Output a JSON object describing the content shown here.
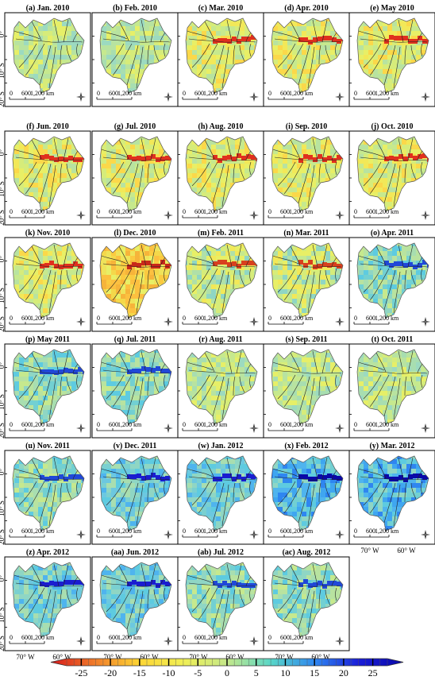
{
  "figure": {
    "panels": [
      {
        "label": "(a) Jan. 2010",
        "pattern": "neutral"
      },
      {
        "label": "(b) Feb. 2010",
        "pattern": "neutral"
      },
      {
        "label": "(c) Mar. 2010",
        "pattern": "red"
      },
      {
        "label": "(d) Apr. 2010",
        "pattern": "red"
      },
      {
        "label": "(e) May 2010",
        "pattern": "red"
      },
      {
        "label": "(f) Jun. 2010",
        "pattern": "red"
      },
      {
        "label": "(g) Jul. 2010",
        "pattern": "red"
      },
      {
        "label": "(h) Aug. 2010",
        "pattern": "red"
      },
      {
        "label": "(i) Sep. 2010",
        "pattern": "red"
      },
      {
        "label": "(j) Oct. 2010",
        "pattern": "red"
      },
      {
        "label": "(k) Nov. 2010",
        "pattern": "red"
      },
      {
        "label": "(l) Dec. 2010",
        "pattern": "strongred"
      },
      {
        "label": "(m) Feb. 2011",
        "pattern": "mixed"
      },
      {
        "label": "(n) Mar. 2011",
        "pattern": "mixed"
      },
      {
        "label": "(o) Apr. 2011",
        "pattern": "blueish"
      },
      {
        "label": "(p) May 2011",
        "pattern": "blueish"
      },
      {
        "label": "(q) Jul. 2011",
        "pattern": "blueish"
      },
      {
        "label": "(r) Aug. 2011",
        "pattern": "neutral"
      },
      {
        "label": "(s) Sep. 2011",
        "pattern": "neutral"
      },
      {
        "label": "(t) Oct. 2011",
        "pattern": "neutral"
      },
      {
        "label": "(u) Nov. 2011",
        "pattern": "blueish"
      },
      {
        "label": "(v) Dec. 2011",
        "pattern": "blue"
      },
      {
        "label": "(w) Jan. 2012",
        "pattern": "blue"
      },
      {
        "label": "(x) Feb. 2012",
        "pattern": "strongblue"
      },
      {
        "label": "(y) Mar. 2012",
        "pattern": "strongblue"
      },
      {
        "label": "(z) Apr. 2012",
        "pattern": "blue"
      },
      {
        "label": "(aa) Jun. 2012",
        "pattern": "blue"
      },
      {
        "label": "(ab) Jul. 2012",
        "pattern": "blueish"
      },
      {
        "label": "(ac) Aug. 2012",
        "pattern": "blueish"
      }
    ],
    "lat_labels": [
      "0°",
      "10° S",
      "20° S"
    ],
    "lon_labels": [
      "70° W",
      "60° W"
    ],
    "scale_labels": [
      "0",
      "600",
      "1,200 km"
    ],
    "colorbar": {
      "ticks": [
        -25,
        -20,
        -15,
        -10,
        -5,
        0,
        5,
        10,
        15,
        20,
        25
      ],
      "tick_labels": [
        "-25",
        "-20",
        "-15",
        "-10",
        "-5",
        "0",
        "5",
        "10",
        "15",
        "20",
        "25"
      ],
      "min": -27.5,
      "max": 27.5,
      "colors": [
        "#d7191c",
        "#f07c2a",
        "#fdd534",
        "#f0ef55",
        "#c5e88a",
        "#58d6c8",
        "#2f86f0",
        "#1a1dd8",
        "#0a08a8"
      ]
    }
  }
}
